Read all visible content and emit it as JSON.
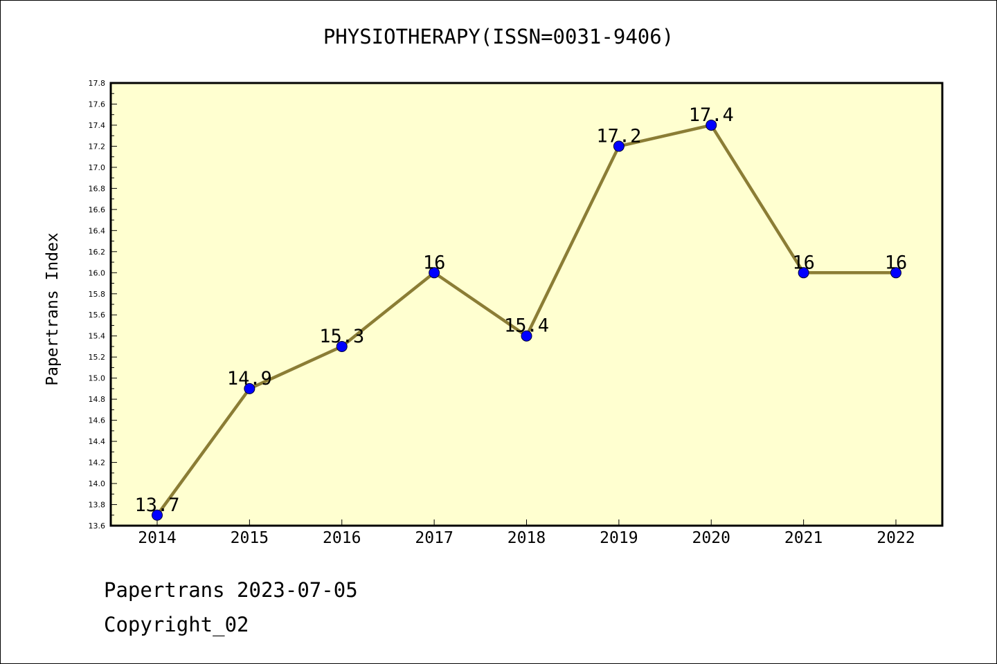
{
  "chart_data": {
    "type": "line",
    "title": "PHYSIOTHERAPY(ISSN=0031-9406)",
    "xlabel": "",
    "ylabel": "Papertrans Index",
    "categories": [
      "2014",
      "2015",
      "2016",
      "2017",
      "2018",
      "2019",
      "2020",
      "2021",
      "2022"
    ],
    "values": [
      13.7,
      14.9,
      15.3,
      16,
      15.4,
      17.2,
      17.4,
      16,
      16
    ],
    "data_labels": [
      "13.7",
      "14.9",
      "15.3",
      "16",
      "15.4",
      "17.2",
      "17.4",
      "16",
      "16"
    ],
    "ylim": [
      13.6,
      17.8
    ],
    "yticks": [
      "13.6",
      "13.8",
      "14.0",
      "14.2",
      "14.4",
      "14.6",
      "14.8",
      "15.0",
      "15.2",
      "15.4",
      "15.6",
      "15.8",
      "16.0",
      "16.2",
      "16.4",
      "16.6",
      "16.8",
      "17.0",
      "17.2",
      "17.4",
      "17.6",
      "17.8"
    ],
    "grid": false,
    "colors": {
      "plot_background": "#ffffd0",
      "line": "#8b7d35",
      "marker": "#0000ff"
    }
  },
  "footer": {
    "date_text": "Papertrans 2023-07-05",
    "copyright_text": "Copyright_02"
  }
}
